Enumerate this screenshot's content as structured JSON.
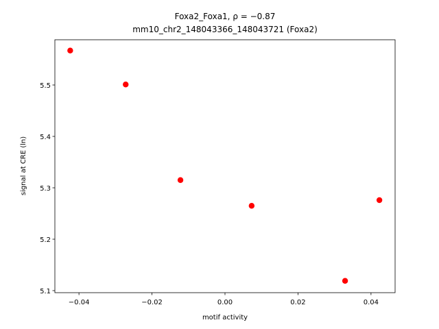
{
  "chart_data": {
    "type": "scatter",
    "title": "Foxa2_Foxa1, ρ = −0.87",
    "subtitle": "mm10_chr2_148043366_148043721 (Foxa2)",
    "x_label": "motif activity",
    "y_label": "signal at CRE (ln)",
    "color": "#ff0000",
    "x": [
      -0.0424,
      -0.0272,
      -0.0122,
      0.0073,
      0.0329,
      0.0423
    ],
    "values": [
      5.567,
      5.501,
      5.315,
      5.265,
      5.119,
      5.276
    ],
    "xlim": [
      -0.0466,
      0.0466
    ],
    "ylim": [
      5.096,
      5.588
    ],
    "xticks": [
      {
        "value": -0.04,
        "label": "−0.04"
      },
      {
        "value": -0.02,
        "label": "−0.02"
      },
      {
        "value": 0,
        "label": "0.00"
      },
      {
        "value": 0.02,
        "label": "0.02"
      },
      {
        "value": 0.04,
        "label": "0.04"
      }
    ],
    "yticks": [
      5.1,
      5.2,
      5.3,
      5.4,
      5.5
    ]
  }
}
